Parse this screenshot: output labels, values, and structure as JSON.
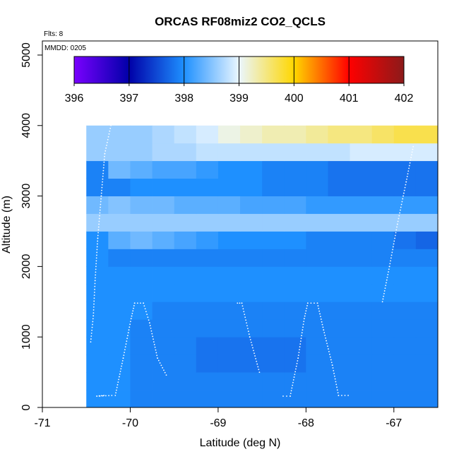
{
  "chart_data": {
    "type": "heatmap",
    "title": "ORCAS RF08miz2 CO2_QCLS",
    "xlabel": "Latitude (deg N)",
    "ylabel": "Altitude (m)",
    "xlim": [
      -71,
      -66.5
    ],
    "ylim": [
      0,
      5200
    ],
    "x_ticks": [
      -71,
      -70,
      -69,
      -68,
      -67
    ],
    "y_ticks": [
      0,
      1000,
      2000,
      3000,
      4000,
      5000
    ],
    "flights_note": "Flts: 8",
    "date_note": "MMDD: 0205",
    "colorbar": {
      "min": 396,
      "max": 402,
      "ticks": [
        396,
        397,
        398,
        399,
        400,
        401,
        402
      ],
      "stops": [
        "#7a00ff",
        "#0000a8",
        "#1e90ff",
        "#eaf6ff",
        "#ffd700",
        "#ff0000",
        "#8b1a1a"
      ]
    },
    "cell_width_deg": 0.25,
    "cell_height_m": 250,
    "rows": [
      {
        "y0": 0,
        "x0": -70.5,
        "values": [
          398.0,
          398.0,
          397.9,
          397.9,
          397.9,
          397.9,
          397.9,
          397.9,
          397.9,
          397.9,
          397.9,
          397.9,
          397.9,
          397.9,
          397.9,
          397.9
        ]
      },
      {
        "y0": 250,
        "x0": -70.5,
        "values": [
          398.0,
          398.0,
          397.9,
          397.9,
          397.9,
          397.9,
          397.9,
          397.9,
          397.9,
          397.9,
          397.9,
          397.9,
          397.9,
          397.9,
          397.9,
          397.9
        ]
      },
      {
        "y0": 500,
        "x0": -70.5,
        "values": [
          398.0,
          398.0,
          397.9,
          397.9,
          397.9,
          397.8,
          397.8,
          397.8,
          397.8,
          397.8,
          397.9,
          397.9,
          397.9,
          397.9,
          397.9,
          397.9
        ]
      },
      {
        "y0": 750,
        "x0": -70.5,
        "values": [
          398.0,
          398.0,
          397.9,
          397.9,
          397.9,
          397.8,
          397.8,
          397.8,
          397.8,
          397.8,
          397.9,
          397.9,
          397.9,
          397.9,
          397.9,
          397.9,
          397.9
        ]
      },
      {
        "y0": 1000,
        "x0": -70.5,
        "values": [
          398.0,
          398.0,
          397.9,
          397.9,
          397.9,
          397.9,
          397.9,
          397.9,
          397.9,
          397.9,
          397.9,
          397.9,
          397.9,
          397.9,
          397.9,
          397.9,
          397.9
        ]
      },
      {
        "y0": 1250,
        "x0": -70.5,
        "values": [
          398.0,
          398.0,
          398.0,
          397.9,
          397.9,
          397.9,
          397.9,
          397.9,
          397.9,
          397.9,
          397.9,
          397.9,
          397.9,
          397.9,
          397.9,
          397.9,
          397.9
        ]
      },
      {
        "y0": 1500,
        "x0": -70.5,
        "values": [
          398.0,
          398.0,
          398.0,
          398.0,
          398.0,
          398.0,
          398.0,
          398.0,
          398.0,
          398.0,
          398.0,
          398.0,
          398.0,
          398.0,
          398.0,
          398.0,
          398.0,
          398.0
        ]
      },
      {
        "y0": 1750,
        "x0": -70.5,
        "values": [
          398.0,
          398.0,
          398.0,
          398.0,
          398.0,
          398.0,
          398.0,
          398.0,
          398.0,
          398.0,
          398.0,
          398.0,
          398.0,
          398.0,
          398.0,
          398.0,
          398.0,
          398.0
        ]
      },
      {
        "y0": 2000,
        "x0": -70.5,
        "values": [
          398.0,
          397.9,
          397.9,
          397.9,
          397.9,
          397.9,
          397.9,
          397.9,
          397.9,
          397.9,
          397.9,
          397.9,
          397.9,
          397.9,
          397.9,
          397.9,
          397.9,
          397.9
        ]
      },
      {
        "y0": 2250,
        "x0": -70.5,
        "values": [
          398.0,
          398.3,
          398.4,
          398.3,
          398.2,
          398.1,
          398.0,
          398.0,
          398.0,
          398.0,
          397.9,
          397.9,
          397.9,
          397.9,
          397.8,
          397.7,
          397.7,
          397.6,
          398.6
        ]
      },
      {
        "y0": 2500,
        "x0": -70.5,
        "values": [
          398.6,
          398.6,
          398.6,
          398.6,
          398.6,
          398.6,
          398.6,
          398.6,
          398.6,
          398.6,
          398.6,
          398.6,
          398.6,
          398.6,
          398.6,
          398.6,
          398.6,
          398.6,
          398.6
        ]
      },
      {
        "y0": 2750,
        "x0": -70.5,
        "values": [
          398.4,
          398.5,
          398.4,
          398.4,
          398.3,
          398.3,
          398.3,
          398.2,
          398.2,
          398.2,
          398.1,
          398.1,
          398.1,
          398.1,
          398.1,
          398.1,
          398.0,
          398.0,
          398.0
        ]
      },
      {
        "y0": 3000,
        "x0": -70.5,
        "values": [
          397.9,
          397.9,
          398.0,
          398.0,
          398.0,
          398.0,
          398.0,
          398.0,
          397.9,
          397.9,
          397.9,
          397.8,
          397.8,
          397.8,
          397.8,
          397.8,
          397.7,
          397.6,
          397.5
        ]
      },
      {
        "y0": 3250,
        "x0": -70.5,
        "values": [
          397.9,
          398.4,
          398.3,
          398.2,
          398.2,
          398.1,
          398.0,
          398.0,
          397.9,
          397.9,
          397.9,
          397.8,
          397.8,
          397.8,
          397.8,
          397.8,
          397.7,
          397.7,
          397.7
        ]
      },
      {
        "y0": 3500,
        "x0": -70.5,
        "values": [
          398.6,
          398.6,
          398.6,
          398.7,
          398.7,
          398.8,
          398.8,
          398.8,
          398.8,
          398.8,
          398.8,
          398.8,
          398.9,
          398.9,
          398.9,
          398.9,
          398.9,
          399.1,
          399.2
        ]
      },
      {
        "y0": 3750,
        "x0": -70.5,
        "values": [
          398.6,
          398.6,
          398.6,
          398.7,
          398.8,
          398.9,
          399.1,
          399.2,
          399.3,
          399.3,
          399.4,
          399.5,
          399.5,
          399.6,
          399.7,
          399.7,
          399.8,
          399.9,
          400.0,
          400.1
        ]
      }
    ],
    "flight_track": [
      [
        -70.45,
        930
      ],
      [
        -70.42,
        1300
      ],
      [
        -70.4,
        1800
      ],
      [
        -70.37,
        2400
      ],
      [
        -70.33,
        3000
      ],
      [
        -70.29,
        3600
      ],
      [
        -70.22,
        4000
      ],
      [
        -70.21,
        170
      ],
      [
        -70.38,
        160
      ],
      [
        -70.3,
        170
      ],
      [
        -70.17,
        170
      ],
      [
        -70.08,
        700
      ],
      [
        -69.99,
        1260
      ],
      [
        -69.95,
        1480
      ],
      [
        -69.85,
        1480
      ],
      [
        -69.78,
        1200
      ],
      [
        -69.69,
        700
      ],
      [
        -69.59,
        460
      ],
      [
        -68.78,
        1480
      ],
      [
        -68.73,
        1480
      ],
      [
        -68.64,
        1000
      ],
      [
        -68.53,
        500
      ],
      [
        -68.26,
        160
      ],
      [
        -68.18,
        160
      ],
      [
        -68.09,
        700
      ],
      [
        -68.02,
        1260
      ],
      [
        -67.98,
        1480
      ],
      [
        -67.87,
        1480
      ],
      [
        -67.8,
        1100
      ],
      [
        -67.7,
        600
      ],
      [
        -67.63,
        170
      ],
      [
        -67.52,
        170
      ],
      [
        -67.13,
        1500
      ],
      [
        -67.05,
        2000
      ],
      [
        -66.96,
        2600
      ],
      [
        -66.86,
        3200
      ],
      [
        -66.78,
        3700
      ]
    ]
  }
}
